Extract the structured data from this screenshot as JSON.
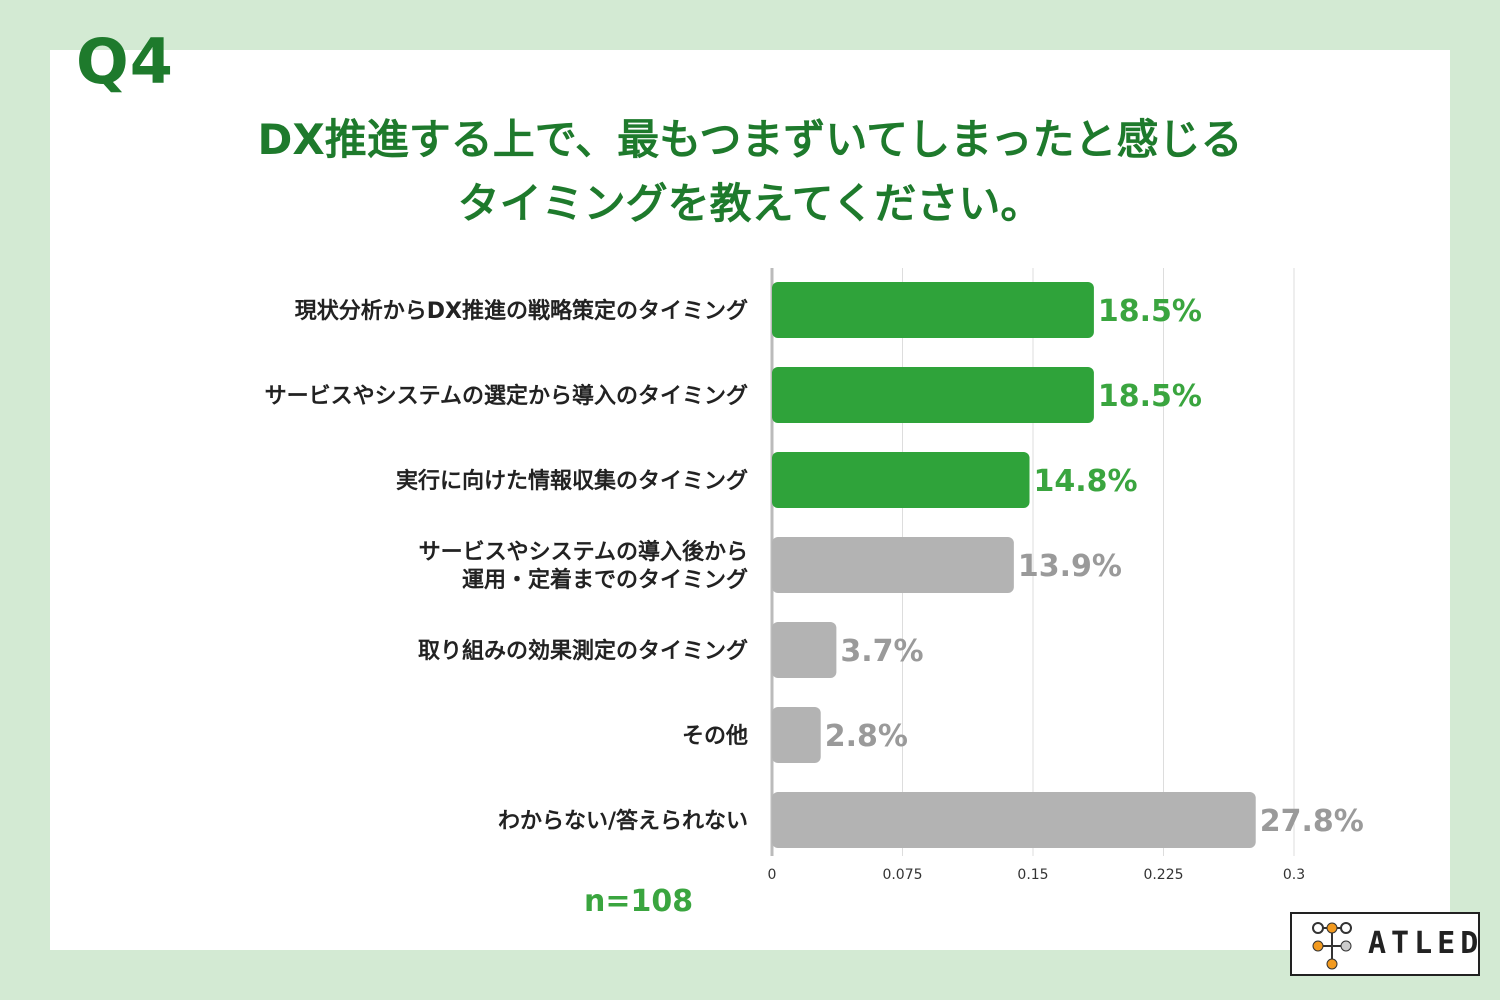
{
  "question_label": "Q4",
  "title_lines": [
    "DX推進する上で、最もつまずいてしまったと感じる",
    "タイミングを教えてください。"
  ],
  "sample_size": "n=108",
  "logo_text": "ATLED",
  "colors": {
    "background": "#d3ead3",
    "highlight_bar": "#2fa33a",
    "other_bar": "#b3b3b3",
    "highlight_text": "#3aa53f",
    "other_text": "#9a9a9a",
    "title": "#1e7a2c"
  },
  "chart_data": {
    "type": "bar",
    "orientation": "horizontal",
    "categories": [
      [
        "現状分析からDX推進の戦略策定のタイミング"
      ],
      [
        "サービスやシステムの選定から導入のタイミング"
      ],
      [
        "実行に向けた情報収集のタイミング"
      ],
      [
        "サービスやシステムの導入後から",
        "運用・定着までのタイミング"
      ],
      [
        "取り組みの効果測定のタイミング"
      ],
      [
        "その他"
      ],
      [
        "わからない/答えられない"
      ]
    ],
    "values": [
      0.185,
      0.185,
      0.148,
      0.139,
      0.037,
      0.028,
      0.278
    ],
    "value_labels": [
      "18.5%",
      "18.5%",
      "14.8%",
      "13.9%",
      "3.7%",
      "2.8%",
      "27.8%"
    ],
    "highlighted": [
      true,
      true,
      true,
      false,
      false,
      false,
      false
    ],
    "xlim": [
      0,
      0.3
    ],
    "xticks": [
      0,
      0.075,
      0.15,
      0.225,
      0.3
    ],
    "xtick_labels": [
      "0",
      "0.075",
      "0.15",
      "0.225",
      "0.3"
    ],
    "grid": true
  }
}
